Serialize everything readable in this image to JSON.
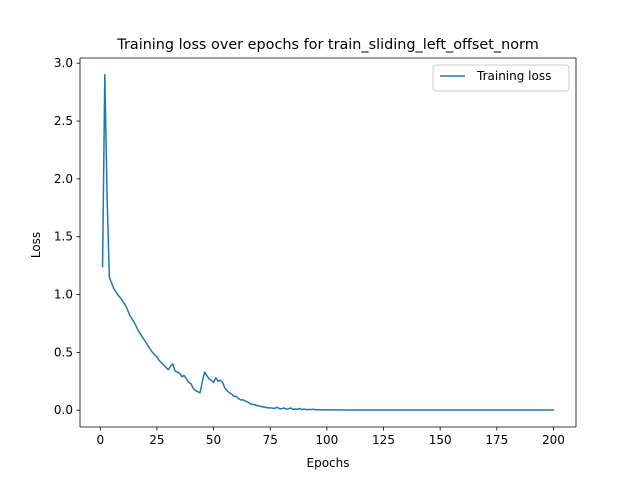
{
  "chart_data": {
    "type": "line",
    "title": "Training loss over epochs for train_sliding_left_offset_norm",
    "xlabel": "Epochs",
    "ylabel": "Loss",
    "xlim": [
      -8.95,
      209.95
    ],
    "ylim": [
      -0.145,
      3.045
    ],
    "xticks": [
      0,
      25,
      50,
      75,
      100,
      125,
      150,
      175,
      200
    ],
    "yticks": [
      0.0,
      0.5,
      1.0,
      1.5,
      2.0,
      2.5,
      3.0
    ],
    "ytick_labels": [
      "0.0",
      "0.5",
      "1.0",
      "1.5",
      "2.0",
      "2.5",
      "3.0"
    ],
    "grid": false,
    "legend_position": "upper right",
    "series": [
      {
        "name": "Training loss",
        "color": "#1f77b4",
        "x": [
          1,
          2,
          3,
          4,
          5,
          6,
          7,
          8,
          9,
          10,
          11,
          12,
          13,
          14,
          15,
          16,
          17,
          18,
          19,
          20,
          21,
          22,
          23,
          24,
          25,
          26,
          27,
          28,
          29,
          30,
          31,
          32,
          33,
          34,
          35,
          36,
          37,
          38,
          39,
          40,
          41,
          42,
          43,
          44,
          45,
          46,
          47,
          48,
          49,
          50,
          51,
          52,
          53,
          54,
          55,
          56,
          57,
          58,
          59,
          60,
          61,
          62,
          63,
          64,
          65,
          66,
          67,
          68,
          69,
          70,
          71,
          72,
          73,
          74,
          75,
          76,
          77,
          78,
          79,
          80,
          81,
          82,
          83,
          84,
          85,
          86,
          87,
          88,
          89,
          90,
          91,
          92,
          93,
          94,
          95,
          96,
          97,
          98,
          99,
          100,
          110,
          120,
          130,
          140,
          150,
          160,
          170,
          180,
          190,
          200
        ],
        "values": [
          1.24,
          2.9,
          1.85,
          1.15,
          1.1,
          1.05,
          1.02,
          0.99,
          0.97,
          0.94,
          0.91,
          0.87,
          0.82,
          0.79,
          0.76,
          0.72,
          0.68,
          0.65,
          0.62,
          0.59,
          0.56,
          0.53,
          0.5,
          0.48,
          0.46,
          0.43,
          0.41,
          0.39,
          0.37,
          0.35,
          0.38,
          0.4,
          0.34,
          0.33,
          0.32,
          0.29,
          0.3,
          0.27,
          0.24,
          0.23,
          0.19,
          0.17,
          0.16,
          0.15,
          0.24,
          0.33,
          0.3,
          0.27,
          0.26,
          0.24,
          0.28,
          0.25,
          0.26,
          0.24,
          0.19,
          0.17,
          0.15,
          0.14,
          0.12,
          0.12,
          0.1,
          0.09,
          0.09,
          0.08,
          0.07,
          0.06,
          0.05,
          0.05,
          0.04,
          0.04,
          0.03,
          0.03,
          0.025,
          0.02,
          0.02,
          0.018,
          0.016,
          0.025,
          0.015,
          0.012,
          0.02,
          0.01,
          0.012,
          0.02,
          0.008,
          0.01,
          0.008,
          0.015,
          0.006,
          0.01,
          0.005,
          0.007,
          0.005,
          0.009,
          0.004,
          0.004,
          0.004,
          0.003,
          0.003,
          0.003,
          0.002,
          0.002,
          0.002,
          0.002,
          0.002,
          0.002,
          0.002,
          0.002,
          0.002,
          0.002
        ]
      }
    ]
  }
}
